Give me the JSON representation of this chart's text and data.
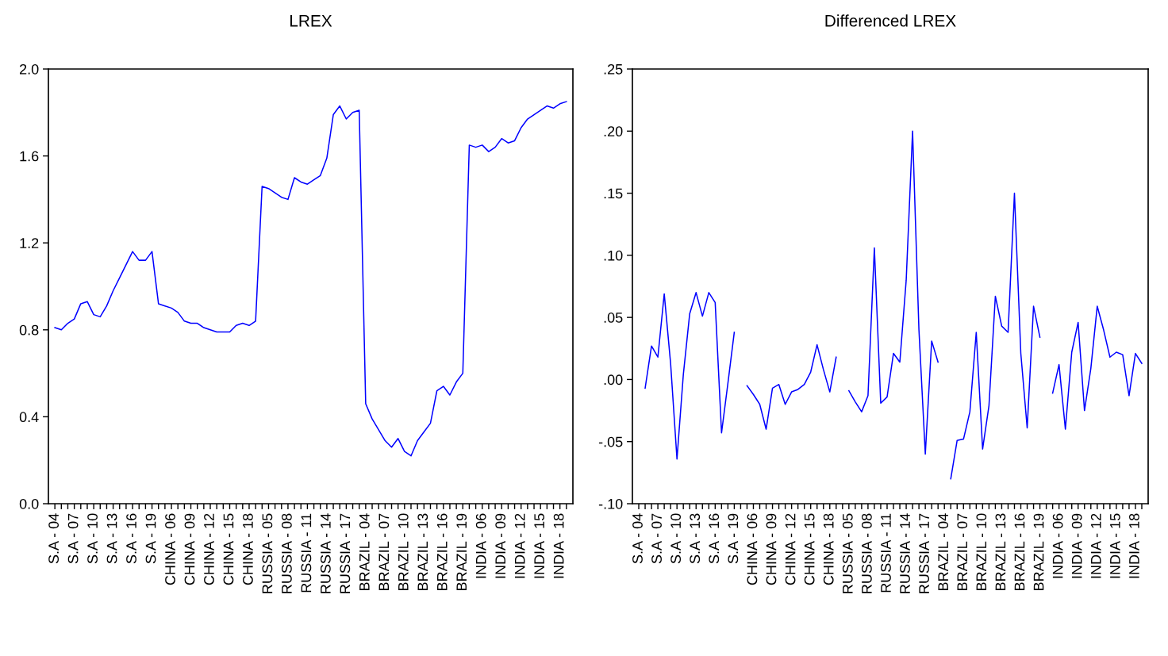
{
  "chart_data": [
    {
      "type": "line",
      "title": "LREX",
      "categories": [
        "S.A - 04",
        null,
        null,
        "S.A - 07",
        null,
        null,
        "S.A - 10",
        null,
        null,
        "S.A - 13",
        null,
        null,
        "S.A - 16",
        null,
        null,
        "S.A - 19",
        null,
        null,
        "CHINA - 06",
        null,
        null,
        "CHINA - 09",
        null,
        null,
        "CHINA - 12",
        null,
        null,
        "CHINA - 15",
        null,
        null,
        "CHINA - 18",
        null,
        null,
        "RUSSIA - 05",
        null,
        null,
        "RUSSIA - 08",
        null,
        null,
        "RUSSIA - 11",
        null,
        null,
        "RUSSIA - 14",
        null,
        null,
        "RUSSIA - 17",
        null,
        null,
        "BRAZIL - 04",
        null,
        null,
        "BRAZIL - 07",
        null,
        null,
        "BRAZIL - 10",
        null,
        null,
        "BRAZIL - 13",
        null,
        null,
        "BRAZIL - 16",
        null,
        null,
        "BRAZIL - 19",
        null,
        null,
        "INDIA - 06",
        null,
        null,
        "INDIA - 09",
        null,
        null,
        "INDIA - 12",
        null,
        null,
        "INDIA - 15",
        null,
        null,
        "INDIA - 18",
        null
      ],
      "series": [
        {
          "color": "#0000ff",
          "values": [
            0.81,
            0.8,
            0.83,
            0.85,
            0.92,
            0.93,
            0.87,
            0.86,
            0.91,
            0.98,
            1.04,
            1.1,
            1.16,
            1.12,
            1.12,
            1.16,
            0.92,
            0.91,
            0.9,
            0.88,
            0.84,
            0.83,
            0.83,
            0.81,
            0.8,
            0.79,
            0.79,
            0.79,
            0.82,
            0.83,
            0.82,
            0.84,
            1.46,
            1.45,
            1.43,
            1.41,
            1.4,
            1.5,
            1.48,
            1.47,
            1.49,
            1.51,
            1.59,
            1.79,
            1.83,
            1.77,
            1.8,
            1.81,
            0.46,
            0.39,
            0.34,
            0.29,
            0.26,
            0.3,
            0.24,
            0.22,
            0.29,
            0.33,
            0.37,
            0.52,
            0.54,
            0.5,
            0.56,
            0.6,
            1.65,
            1.64,
            1.65,
            1.62,
            1.64,
            1.68,
            1.66,
            1.67,
            1.73,
            1.77,
            1.79,
            1.81,
            1.83,
            1.82,
            1.84,
            1.85
          ]
        }
      ],
      "ylim": [
        0,
        2.0
      ],
      "yticks": [
        {
          "value": 0,
          "label": "0.0"
        },
        {
          "value": 0.4,
          "label": "0.4"
        },
        {
          "value": 0.8,
          "label": "0.8"
        },
        {
          "value": 1.2,
          "label": "1.2"
        },
        {
          "value": 1.6,
          "label": "1.6"
        },
        {
          "value": 2.0,
          "label": "2.0"
        }
      ],
      "grid": false,
      "line_style": "solid",
      "marker": "none"
    },
    {
      "type": "line",
      "title": "Differenced LREX",
      "categories": [
        "S.A - 04",
        null,
        null,
        "S.A - 07",
        null,
        null,
        "S.A - 10",
        null,
        null,
        "S.A - 13",
        null,
        null,
        "S.A - 16",
        null,
        null,
        "S.A - 19",
        null,
        null,
        "CHINA - 06",
        null,
        null,
        "CHINA - 09",
        null,
        null,
        "CHINA - 12",
        null,
        null,
        "CHINA - 15",
        null,
        null,
        "CHINA - 18",
        null,
        null,
        "RUSSIA - 05",
        null,
        null,
        "RUSSIA - 08",
        null,
        null,
        "RUSSIA - 11",
        null,
        null,
        "RUSSIA - 14",
        null,
        null,
        "RUSSIA - 17",
        null,
        null,
        "BRAZIL - 04",
        null,
        null,
        "BRAZIL - 07",
        null,
        null,
        "BRAZIL - 10",
        null,
        null,
        "BRAZIL - 13",
        null,
        null,
        "BRAZIL - 16",
        null,
        null,
        "BRAZIL - 19",
        null,
        null,
        "INDIA - 06",
        null,
        null,
        "INDIA - 09",
        null,
        null,
        "INDIA - 12",
        null,
        null,
        "INDIA - 15",
        null,
        null,
        "INDIA - 18",
        null
      ],
      "series": [
        {
          "color": "#0000ff",
          "values": [
            null,
            -0.007,
            0.027,
            0.018,
            0.069,
            0.013,
            -0.064,
            0.004,
            0.053,
            0.07,
            0.051,
            0.07,
            0.062,
            -0.043,
            -0.003,
            0.038,
            null,
            -0.005,
            -0.012,
            -0.02,
            -0.04,
            -0.007,
            -0.004,
            -0.02,
            -0.01,
            -0.008,
            -0.004,
            0.006,
            0.028,
            0.008,
            -0.01,
            0.018,
            null,
            -0.009,
            -0.018,
            -0.026,
            -0.013,
            0.106,
            -0.019,
            -0.014,
            0.021,
            0.014,
            0.08,
            0.2,
            0.04,
            -0.06,
            0.031,
            0.014,
            null,
            -0.08,
            -0.049,
            -0.048,
            -0.026,
            0.038,
            -0.056,
            -0.021,
            0.067,
            0.043,
            0.038,
            0.15,
            0.021,
            -0.039,
            0.059,
            0.034,
            null,
            -0.011,
            0.012,
            -0.04,
            0.022,
            0.046,
            -0.025,
            0.009,
            0.059,
            0.04,
            0.018,
            0.022,
            0.02,
            -0.013,
            0.021,
            0.013
          ]
        }
      ],
      "ylim": [
        -0.1,
        0.25
      ],
      "yticks": [
        {
          "value": -0.1,
          "label": "-.10"
        },
        {
          "value": -0.05,
          "label": "-.05"
        },
        {
          "value": 0,
          "label": ".00"
        },
        {
          "value": 0.05,
          "label": ".05"
        },
        {
          "value": 0.1,
          "label": ".10"
        },
        {
          "value": 0.15,
          "label": ".15"
        },
        {
          "value": 0.2,
          "label": ".20"
        },
        {
          "value": 0.25,
          "label": ".25"
        }
      ],
      "grid": false,
      "line_style": "solid",
      "marker": "none"
    }
  ]
}
